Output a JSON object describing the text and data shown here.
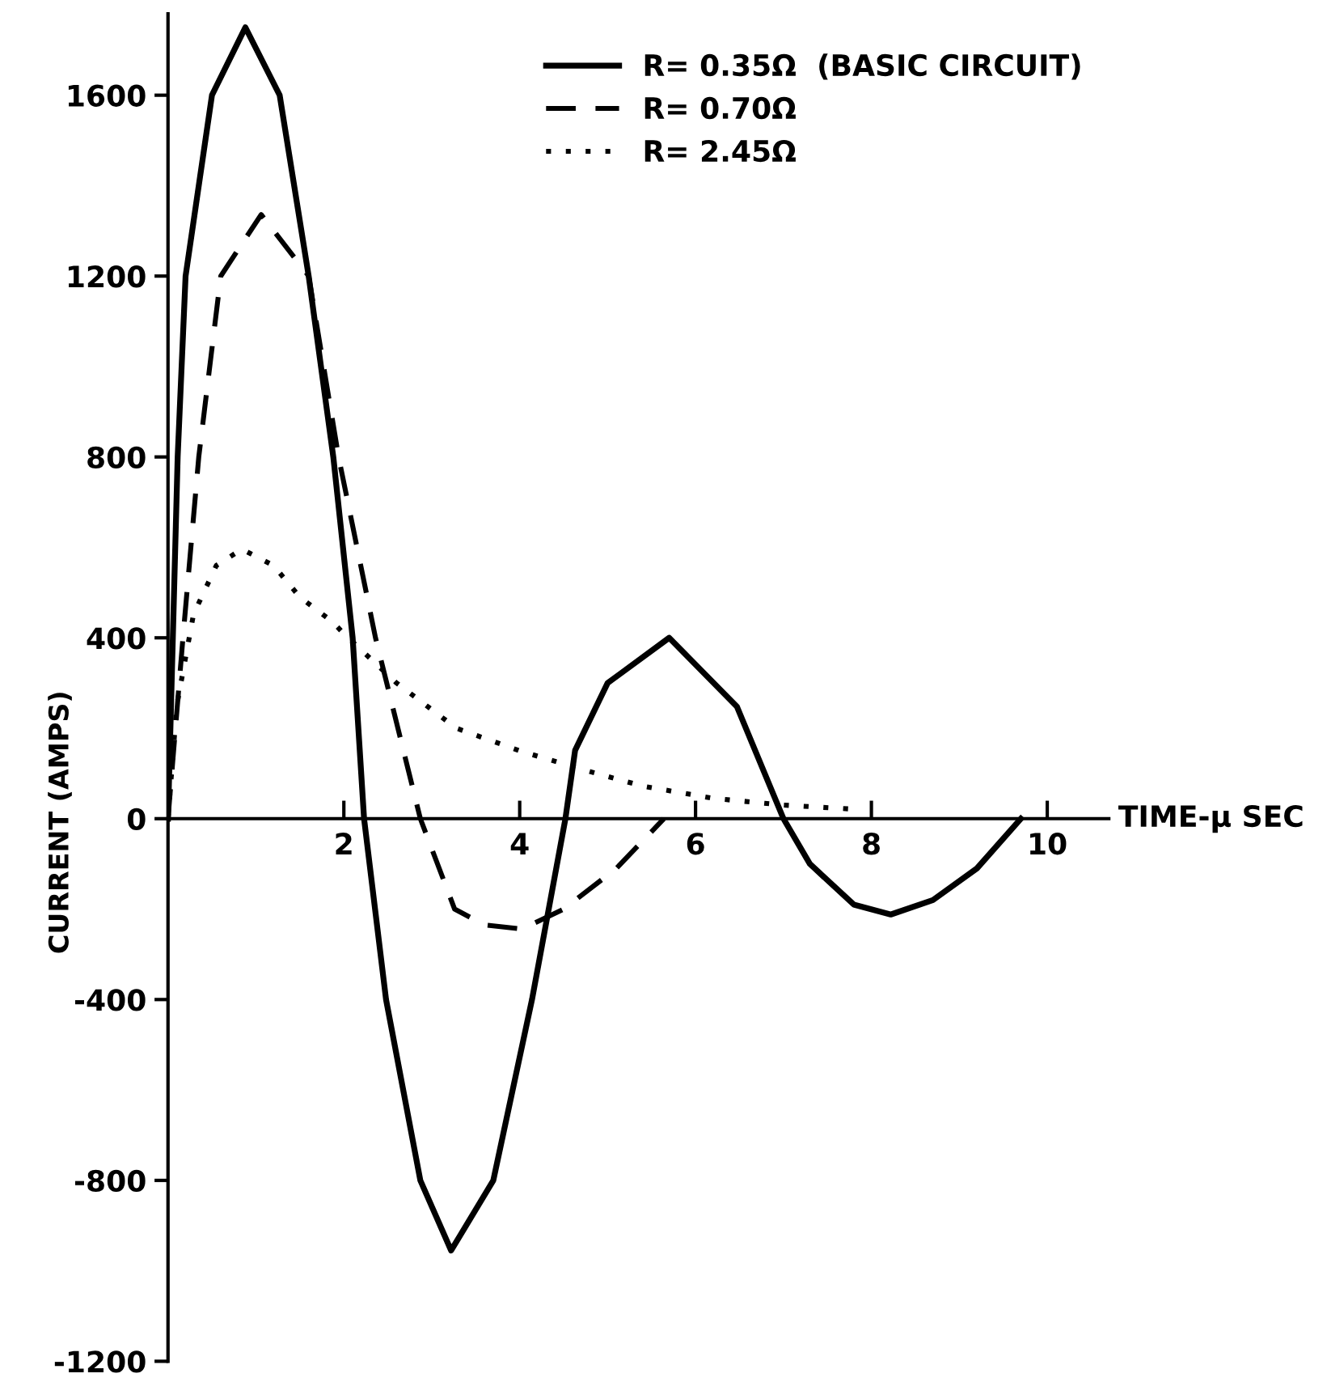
{
  "chart_data": {
    "type": "line",
    "xlabel": "TIME-μ SEC",
    "ylabel": "CURRENT (AMPS)",
    "xlim": [
      0,
      10.7
    ],
    "ylim": [
      -1200,
      1780
    ],
    "xticks": [
      2,
      4,
      6,
      8,
      10
    ],
    "yticks": [
      -1200,
      -800,
      -400,
      0,
      400,
      800,
      1200,
      1600
    ],
    "grid": false,
    "legend": "top right",
    "marker": "none",
    "series": [
      {
        "name": "R= 0.35Ω  (BASIC CIRCUIT)",
        "color": "#000000",
        "line_style": "solid",
        "x": [
          0,
          0.11,
          0.2,
          0.5,
          0.88,
          1.27,
          1.6,
          1.88,
          2.1,
          2.23,
          2.48,
          2.87,
          3.22,
          3.7,
          4.14,
          4.52,
          4.63,
          5.0,
          5.7,
          6.47,
          7.0,
          7.3,
          7.8,
          8.22,
          8.7,
          9.2,
          9.7
        ],
        "values": [
          0,
          800,
          1200,
          1600,
          1750,
          1600,
          1200,
          800,
          400,
          0,
          -400,
          -800,
          -955,
          -800,
          -400,
          0,
          151,
          300,
          400,
          248,
          0,
          -100,
          -190,
          -212,
          -180,
          -110,
          0
        ]
      },
      {
        "name": "R= 0.70Ω",
        "color": "#000000",
        "line_style": "dashed",
        "x": [
          0,
          0.17,
          0.35,
          0.6,
          1.06,
          1.6,
          1.94,
          2.36,
          2.87,
          3.26,
          3.6,
          4.03,
          4.5,
          5.1,
          5.64
        ],
        "values": [
          0,
          400,
          800,
          1200,
          1336,
          1200,
          800,
          400,
          0,
          -200,
          -235,
          -244,
          -200,
          -110,
          0
        ]
      },
      {
        "name": "R= 2.45Ω",
        "color": "#000000",
        "line_style": "dotted",
        "x": [
          0,
          0.1,
          0.29,
          0.55,
          0.84,
          1.2,
          1.5,
          1.88,
          2.0,
          2.6,
          3.28,
          4.0,
          4.8,
          5.4,
          6.2,
          7.0,
          7.9
        ],
        "values": [
          0,
          250,
          452,
          560,
          596,
          560,
          490,
          434,
          409,
          300,
          200,
          150,
          104,
          72,
          45,
          30,
          20
        ]
      }
    ]
  }
}
